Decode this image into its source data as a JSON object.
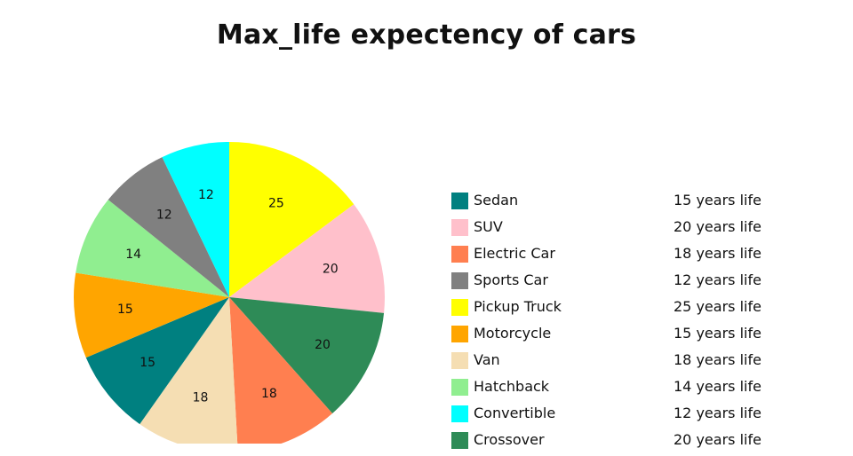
{
  "chart_data": {
    "type": "pie",
    "title": "Max_life expectency of cars",
    "slices": [
      {
        "label": "Pickup Truck",
        "value": 25,
        "color": "#ffff00"
      },
      {
        "label": "SUV",
        "value": 20,
        "color": "#ffc0cb"
      },
      {
        "label": "Crossover",
        "value": 20,
        "color": "#2e8b57"
      },
      {
        "label": "Electric Car",
        "value": 18,
        "color": "#ff7f50"
      },
      {
        "label": "Van",
        "value": 18,
        "color": "#f5deb3"
      },
      {
        "label": "Sedan",
        "value": 15,
        "color": "#008080"
      },
      {
        "label": "Motorcycle",
        "value": 15,
        "color": "#ffa500"
      },
      {
        "label": "Hatchback",
        "value": 14,
        "color": "#90ee90"
      },
      {
        "label": "Sports Car",
        "value": 12,
        "color": "#808080"
      },
      {
        "label": "Convertible",
        "value": 12,
        "color": "#00ffff"
      }
    ],
    "legend": {
      "placement": "right",
      "items": [
        {
          "label": "Sedan",
          "text": "15 years life",
          "color": "#008080"
        },
        {
          "label": "SUV",
          "text": "20 years life",
          "color": "#ffc0cb"
        },
        {
          "label": "Electric Car",
          "text": "18 years life",
          "color": "#ff7f50"
        },
        {
          "label": "Sports Car",
          "text": "12 years life",
          "color": "#808080"
        },
        {
          "label": "Pickup Truck",
          "text": "25 years life",
          "color": "#ffff00"
        },
        {
          "label": "Motorcycle",
          "text": "15 years life",
          "color": "#ffa500"
        },
        {
          "label": "Van",
          "text": "18 years life",
          "color": "#f5deb3"
        },
        {
          "label": "Hatchback",
          "text": "14 years life",
          "color": "#90ee90"
        },
        {
          "label": "Convertible",
          "text": "12 years life",
          "color": "#00ffff"
        },
        {
          "label": "Crossover",
          "text": "20 years life",
          "color": "#2e8b57"
        }
      ]
    }
  }
}
